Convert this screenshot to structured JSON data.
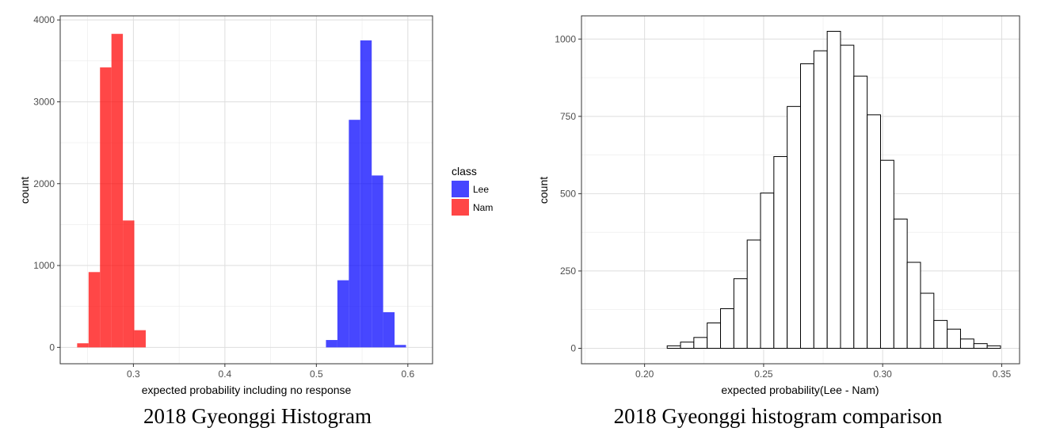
{
  "chart_data": [
    {
      "type": "bar",
      "subtype": "histogram",
      "caption": "2018 Gyeonggi Histogram",
      "xlabel": "expected probability including no response",
      "ylabel": "count",
      "xlim": [
        0.22,
        0.627
      ],
      "ylim": [
        -200,
        4050
      ],
      "xticks": [
        0.3,
        0.4,
        0.5,
        0.6
      ],
      "xtick_labels": [
        "0.3",
        "0.4",
        "0.5",
        "0.6"
      ],
      "yticks": [
        0,
        1000,
        2000,
        3000,
        4000
      ],
      "ytick_labels": [
        "0",
        "1000",
        "2000",
        "3000",
        "4000"
      ],
      "grid": true,
      "legend": {
        "title": "class",
        "placement": "right"
      },
      "series": [
        {
          "name": "Lee",
          "color": "#0000ff",
          "bins": [
            {
              "x0": 0.5105,
              "x1": 0.523,
              "count": 90
            },
            {
              "x0": 0.523,
              "x1": 0.5355,
              "count": 820
            },
            {
              "x0": 0.5355,
              "x1": 0.548,
              "count": 2780
            },
            {
              "x0": 0.548,
              "x1": 0.5605,
              "count": 3750
            },
            {
              "x0": 0.5605,
              "x1": 0.573,
              "count": 2100
            },
            {
              "x0": 0.573,
              "x1": 0.5855,
              "count": 430
            },
            {
              "x0": 0.5855,
              "x1": 0.598,
              "count": 30
            }
          ]
        },
        {
          "name": "Nam",
          "color": "#ff0000",
          "bins": [
            {
              "x0": 0.2385,
              "x1": 0.251,
              "count": 50
            },
            {
              "x0": 0.251,
              "x1": 0.2635,
              "count": 920
            },
            {
              "x0": 0.2635,
              "x1": 0.276,
              "count": 3420
            },
            {
              "x0": 0.276,
              "x1": 0.2885,
              "count": 3830
            },
            {
              "x0": 0.2885,
              "x1": 0.301,
              "count": 1550
            },
            {
              "x0": 0.301,
              "x1": 0.3135,
              "count": 210
            }
          ]
        }
      ]
    },
    {
      "type": "bar",
      "subtype": "histogram",
      "caption": "2018 Gyeonggi histogram comparison",
      "xlabel": "expected probability(Lee - Nam)",
      "ylabel": "count",
      "xlim": [
        0.1735,
        0.3575
      ],
      "ylim": [
        -50,
        1075
      ],
      "xticks": [
        0.2,
        0.25,
        0.3,
        0.35
      ],
      "xtick_labels": [
        "0.20",
        "0.25",
        "0.30",
        "0.35"
      ],
      "yticks": [
        0,
        250,
        500,
        750,
        1000
      ],
      "ytick_labels": [
        "0",
        "250",
        "500",
        "750",
        "1000"
      ],
      "grid": true,
      "fill": "#ffffff",
      "stroke": "#000000",
      "bin_start": 0.1815,
      "bin_width": 0.0056,
      "counts": [
        0,
        0,
        0,
        0,
        0,
        8,
        20,
        35,
        82,
        128,
        225,
        350,
        502,
        620,
        782,
        920,
        962,
        1025,
        980,
        880,
        755,
        608,
        418,
        278,
        178,
        90,
        62,
        30,
        15,
        8,
        0
      ]
    }
  ]
}
